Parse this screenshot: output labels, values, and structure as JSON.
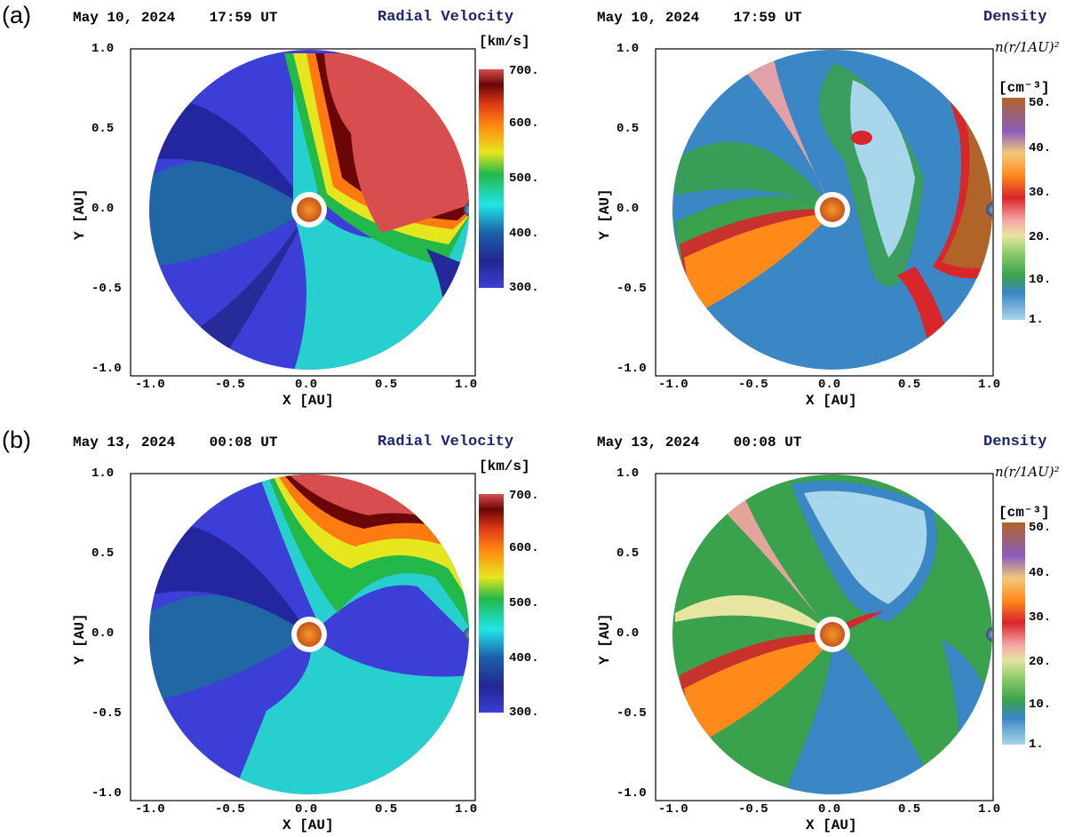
{
  "figure": {
    "panel_labels": [
      "(a)",
      "(b)"
    ],
    "axis": {
      "xlabel": "X [AU]",
      "ylabel": "Y [AU]",
      "ticks": [
        "-1.0",
        "-0.5",
        "0.0",
        "0.5",
        "1.0"
      ]
    },
    "panels": [
      {
        "date": "May 10, 2024    17:59 UT",
        "quantity": "Radial Velocity",
        "unit": "[km/s]",
        "colorbar_labels": [
          "700.",
          "600.",
          "500.",
          "400.",
          "300."
        ],
        "colors": [
          "#3c3fd0",
          "#26289a",
          "#28c0c0",
          "#1fe8e8",
          "#1fbf3a",
          "#e8e81e",
          "#ff8a10",
          "#e04020",
          "#6a0808",
          "#d85050"
        ]
      },
      {
        "date": "May 10, 2024    17:59 UT",
        "quantity": "Density",
        "unit": "[cm⁻³]",
        "density_expr_r": "r",
        "density_expr_au": "1AU",
        "density_expr_prefix": "n(",
        "density_expr_suffix": ")²",
        "colorbar_labels": [
          "50.",
          "40.",
          "30.",
          "20.",
          "10.",
          "1."
        ],
        "colors": [
          "#a9d4e6",
          "#3d88c4",
          "#3aa04a",
          "#e8e3a0",
          "#f6a3a3",
          "#d8282a",
          "#ff8a1a",
          "#8a5cba",
          "#b06428"
        ]
      },
      {
        "date": "May 13, 2024    00:08 UT",
        "quantity": "Radial Velocity",
        "unit": "[km/s]",
        "colorbar_labels": [
          "700.",
          "600.",
          "500.",
          "400.",
          "300."
        ]
      },
      {
        "date": "May 13, 2024    00:08 UT",
        "quantity": "Density",
        "unit": "[cm⁻³]",
        "density_expr_r": "r",
        "density_expr_au": "1AU",
        "density_expr_prefix": "n(",
        "density_expr_suffix": ")²",
        "colorbar_labels": [
          "50.",
          "40.",
          "30.",
          "20.",
          "10.",
          "1."
        ]
      }
    ]
  }
}
